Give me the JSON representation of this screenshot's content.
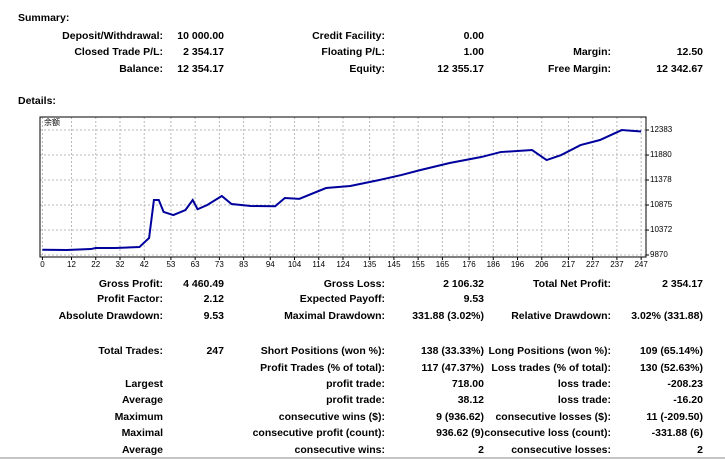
{
  "summary": {
    "title": "Summary:",
    "rows": [
      [
        "Deposit/Withdrawal:",
        "10 000.00",
        "Credit Facility:",
        "0.00",
        null,
        null
      ],
      [
        "Closed Trade P/L:",
        "2 354.17",
        "Floating P/L:",
        "1.00",
        "Margin:",
        "12.50"
      ],
      [
        "Balance:",
        "12 354.17",
        "Equity:",
        "12 355.17",
        "Free Margin:",
        "12 342.67"
      ]
    ]
  },
  "details": {
    "title": "Details:"
  },
  "chart_data": {
    "type": "line",
    "x": [
      0,
      10,
      20,
      22,
      30,
      40,
      44,
      46,
      48,
      50,
      54,
      59,
      62,
      64,
      68,
      74,
      78,
      86,
      96,
      100,
      106,
      117,
      127,
      139,
      148,
      156,
      168,
      181,
      189,
      202,
      208,
      214,
      222,
      230,
      239,
      247
    ],
    "series": [
      {
        "name": "余额",
        "color": "#00009c",
        "values": [
          9975,
          9970,
          9990,
          10010,
          10010,
          10030,
          10212,
          10976,
          10976,
          10735,
          10674,
          10775,
          10976,
          10790,
          10875,
          11056,
          10895,
          10855,
          10850,
          11016,
          11000,
          11217,
          11257,
          11378,
          11478,
          11579,
          11720,
          11840,
          11940,
          11981,
          11780,
          11880,
          12081,
          12182,
          12383,
          12354
        ]
      }
    ],
    "xlim": [
      -1,
      249
    ],
    "ylim": [
      9830,
      12645
    ],
    "xticks": [
      0,
      12,
      22,
      32,
      42,
      53,
      63,
      73,
      83,
      94,
      104,
      114,
      124,
      135,
      145,
      155,
      165,
      176,
      186,
      196,
      206,
      217,
      227,
      237,
      247
    ],
    "yticks": [
      9870,
      10372,
      10875,
      11378,
      11880,
      12383
    ],
    "grid": true
  },
  "stats": {
    "rows": [
      [
        "Gross Profit:",
        "4 460.49",
        "Gross Loss:",
        "2 106.32",
        "Total Net Profit:",
        "2 354.17"
      ],
      [
        "Profit Factor:",
        "2.12",
        "Expected Payoff:",
        "9.53",
        null,
        null
      ],
      [
        "Absolute Drawdown:",
        "9.53",
        "Maximal Drawdown:",
        "331.88 (3.02%)",
        "Relative Drawdown:",
        "3.02% (331.88)"
      ],
      [
        "Total Trades:",
        "247",
        "Short Positions (won %):",
        "138 (33.33%)",
        "Long Positions (won %):",
        "109 (65.14%)"
      ],
      [
        null,
        null,
        "Profit Trades (% of total):",
        "117 (47.37%)",
        "Loss trades (% of total):",
        "130 (52.63%)"
      ],
      [
        "Largest",
        null,
        "profit trade:",
        "718.00",
        "loss trade:",
        "-208.23"
      ],
      [
        "Average",
        null,
        "profit trade:",
        "38.12",
        "loss trade:",
        "-16.20"
      ],
      [
        "Maximum",
        null,
        "consecutive wins ($):",
        "9 (936.62)",
        "consecutive losses ($):",
        "11 (-209.50)"
      ],
      [
        "Maximal",
        null,
        "consecutive profit (count):",
        "936.62 (9)",
        "consecutive loss (count):",
        "-331.88 (6)"
      ],
      [
        "Average",
        null,
        "consecutive wins:",
        "2",
        "consecutive losses:",
        "2"
      ]
    ]
  }
}
